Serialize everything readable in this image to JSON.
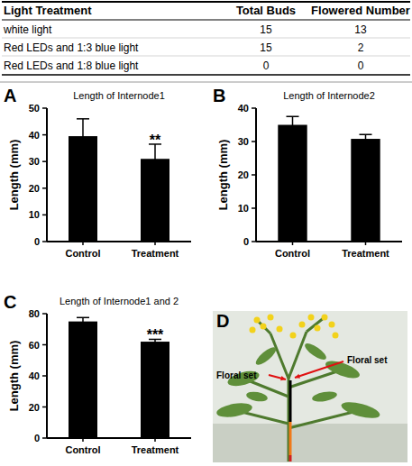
{
  "panel_labels": [
    "A",
    "B",
    "C",
    "D"
  ],
  "table": {
    "header": [
      "Light Treatment",
      "Total Buds",
      "Flowered Number"
    ],
    "rows": [
      [
        "white light",
        15,
        13
      ],
      [
        "Red LEDs and 1:3 blue light",
        15,
        2
      ],
      [
        "Red LEDs and 1:8 blue light",
        0,
        0
      ]
    ]
  },
  "chart_data": [
    {
      "type": "bar",
      "title": "Length of Internode1",
      "ylabel": "Length (mm)",
      "categories": [
        "Control",
        "Treatment"
      ],
      "values": [
        39.5,
        31
      ],
      "errors": [
        6.5,
        5.5
      ],
      "color": "#000000",
      "ylim": [
        0,
        50
      ],
      "yticks": [
        0,
        10,
        20,
        30,
        40,
        50
      ],
      "annotations": [
        {
          "text": "**",
          "category": "Treatment"
        }
      ]
    },
    {
      "type": "bar",
      "title": "Length of Internode2",
      "ylabel": "Length (mm)",
      "categories": [
        "Control",
        "Treatment"
      ],
      "values": [
        35,
        30.8
      ],
      "errors": [
        2.5,
        1.3
      ],
      "color": "#000000",
      "ylim": [
        0,
        40
      ],
      "yticks": [
        0,
        10,
        20,
        30,
        40
      ]
    },
    {
      "type": "bar",
      "title": "Length of Internode1 and 2",
      "ylabel": "Length (mm)",
      "categories": [
        "Control",
        "Treatment"
      ],
      "values": [
        75,
        62
      ],
      "errors": [
        2.5,
        1.5
      ],
      "color": "#000000",
      "ylim": [
        0,
        80
      ],
      "yticks": [
        0,
        20,
        40,
        60,
        80
      ],
      "annotations": [
        {
          "text": "***",
          "category": "Treatment"
        }
      ]
    }
  ],
  "photo": {
    "annotations": [
      "Floral set",
      "Floral set"
    ]
  }
}
